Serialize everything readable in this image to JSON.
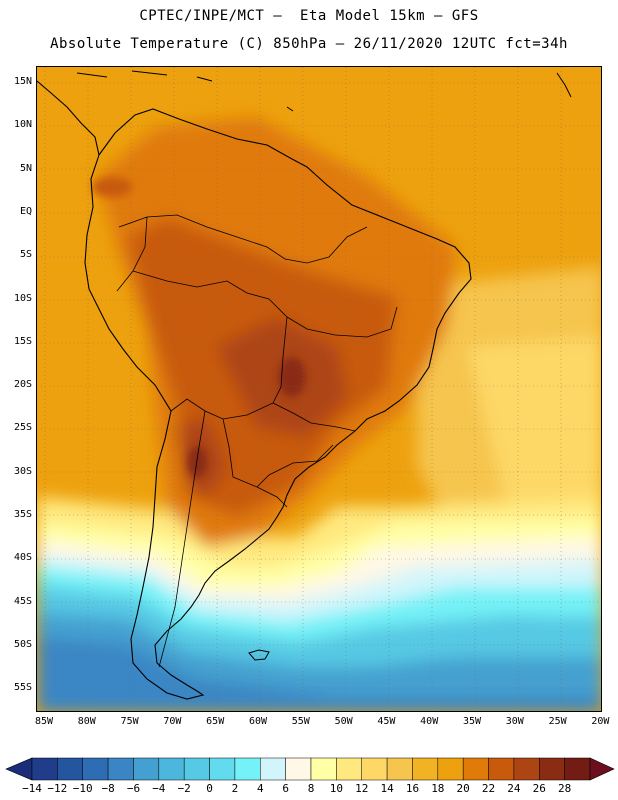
{
  "header": {
    "title_line1": "CPTEC/INPE/MCT –  Eta Model 15km – GFS",
    "title_line2": "Absolute Temperature (C) 850hPa – 26/11/2020 12UTC fct=34h"
  },
  "lat_labels": [
    "15N",
    "10N",
    "5N",
    "EQ",
    "5S",
    "10S",
    "15S",
    "20S",
    "25S",
    "30S",
    "35S",
    "40S",
    "45S",
    "50S",
    "55S"
  ],
  "lon_labels": [
    "85W",
    "80W",
    "75W",
    "70W",
    "65W",
    "60W",
    "55W",
    "50W",
    "45W",
    "40W",
    "35W",
    "30W",
    "25W",
    "20W"
  ],
  "colorbar": {
    "labels": [
      "-14",
      "-12",
      "-10",
      "-8",
      "-6",
      "-4",
      "-2",
      "0",
      "2",
      "4",
      "6",
      "8",
      "10",
      "12",
      "14",
      "16",
      "18",
      "20",
      "22",
      "24",
      "26",
      "28"
    ],
    "colors": [
      "#1f3d8a",
      "#2456a0",
      "#2e6db3",
      "#3a86c4",
      "#44a0d0",
      "#4cb6dc",
      "#56c9e4",
      "#62dbee",
      "#74f2f7",
      "#d2f5fb",
      "#fff8e6",
      "#ffffa5",
      "#ffe97f",
      "#fdd866",
      "#f6c54d",
      "#f1b223",
      "#eda10e",
      "#e07a08",
      "#c85a0c",
      "#ad4413",
      "#8a2c13",
      "#731c13"
    ],
    "under_color": "#1a2d7a",
    "over_color": "#6b0f1e"
  }
}
